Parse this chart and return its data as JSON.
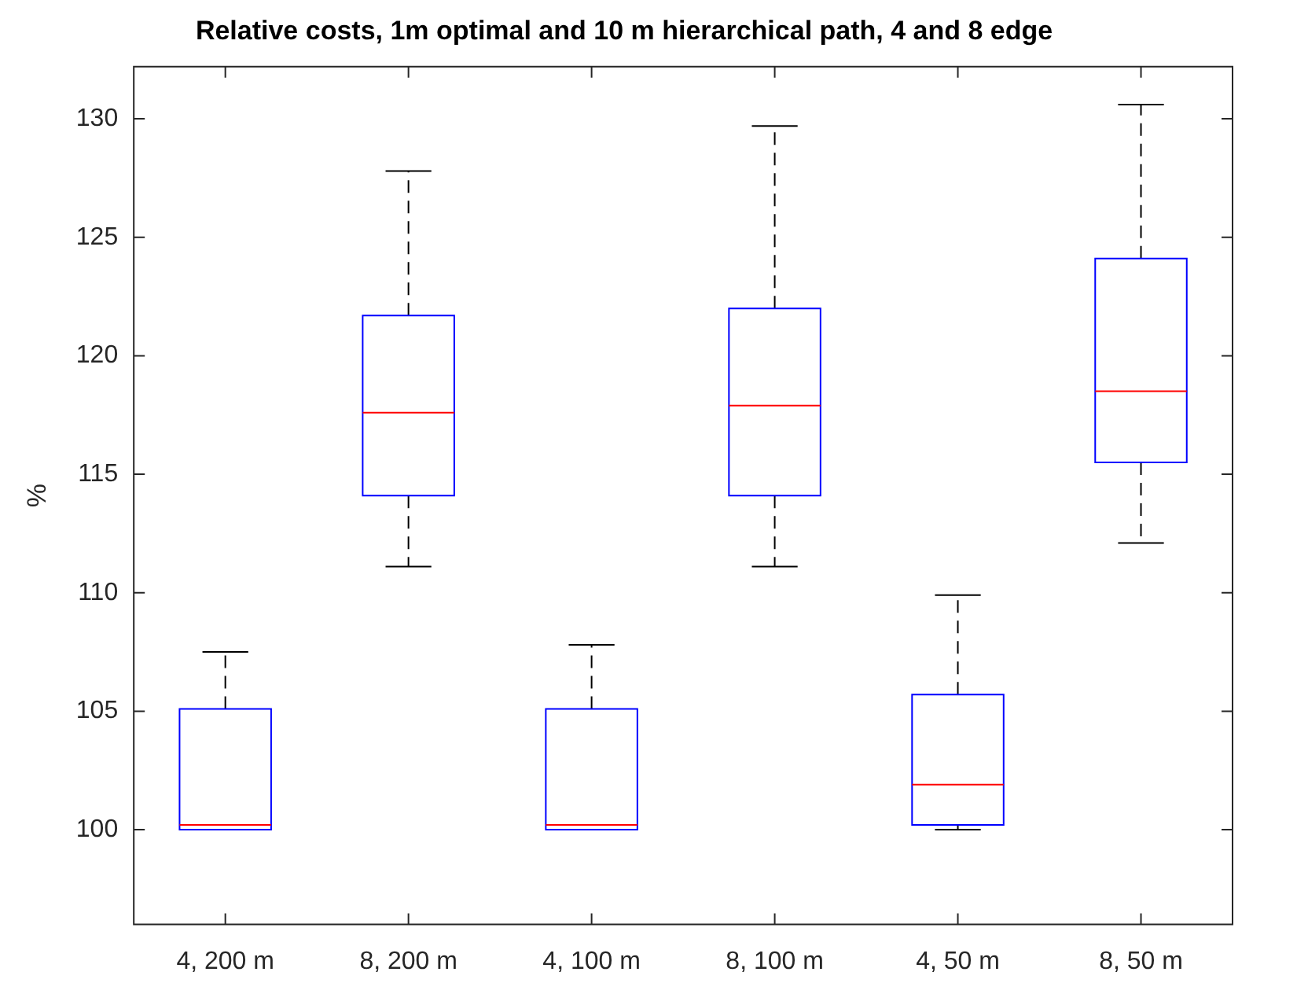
{
  "chart_data": {
    "type": "box",
    "title": "Relative costs, 1m optimal and 10 m hierarchical path, 4 and 8 edge",
    "ylabel": "%",
    "categories": [
      "4, 200 m",
      "8, 200 m",
      "4, 100 m",
      "8, 100 m",
      "4, 50 m",
      "8, 50 m"
    ],
    "series": [
      {
        "color": "#0000ff",
        "boxes": [
          {
            "low": 100,
            "q1": 100,
            "median": 100.2,
            "q3": 105.1,
            "high": 107.5
          },
          {
            "low": 111.1,
            "q1": 114.1,
            "median": 117.6,
            "q3": 121.7,
            "high": 127.8
          },
          {
            "low": 100,
            "q1": 100,
            "median": 100.2,
            "q3": 105.1,
            "high": 107.8
          },
          {
            "low": 111.1,
            "q1": 114.1,
            "median": 117.9,
            "q3": 122,
            "high": 129.7
          },
          {
            "low": 100,
            "q1": 100.2,
            "median": 101.9,
            "q3": 105.7,
            "high": 109.9
          },
          {
            "low": 112.1,
            "q1": 115.5,
            "median": 118.5,
            "q3": 124.1,
            "high": 130.6
          }
        ]
      }
    ],
    "ylim": [
      96,
      132.2
    ],
    "yticks": [
      100,
      105,
      110,
      115,
      120,
      125,
      130
    ],
    "grid": false,
    "legend": false
  }
}
